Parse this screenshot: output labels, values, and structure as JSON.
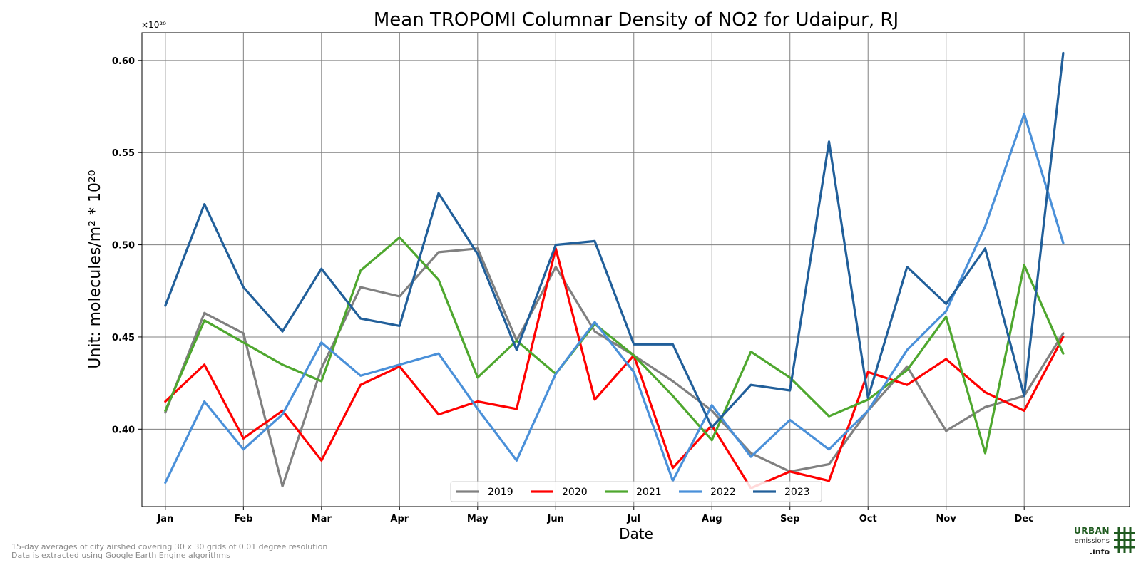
{
  "footnotes": {
    "line1": "15-day averages of city airshed covering 30 x 30 grids of 0.01 degree resolution",
    "line2": "Data is extracted using Google Earth Engine algorithms"
  },
  "logo": {
    "line1": "URBAN",
    "line2": "emissions",
    "line3": ".info"
  },
  "chart_data": {
    "type": "line",
    "title": "Mean TROPOMI Columnar Density of NO2 for Udaipur, RJ",
    "xlabel": "Date",
    "ylabel": "Unit: molecules/m² * 10²⁰",
    "offset_text": "×10²⁰",
    "x": [
      1,
      2,
      3,
      4,
      5,
      6,
      7,
      8,
      9,
      10,
      11,
      12,
      13,
      14,
      15,
      16,
      17,
      18,
      19,
      20,
      21,
      22,
      23,
      24
    ],
    "xlim": [
      0.4,
      25.7
    ],
    "xticks": [
      {
        "x": 1,
        "label": "Jan"
      },
      {
        "x": 3,
        "label": "Feb"
      },
      {
        "x": 5,
        "label": "Mar"
      },
      {
        "x": 7,
        "label": "Apr"
      },
      {
        "x": 9,
        "label": "May"
      },
      {
        "x": 11,
        "label": "Jun"
      },
      {
        "x": 13,
        "label": "Jul"
      },
      {
        "x": 15,
        "label": "Aug"
      },
      {
        "x": 17,
        "label": "Sep"
      },
      {
        "x": 19,
        "label": "Oct"
      },
      {
        "x": 21,
        "label": "Nov"
      },
      {
        "x": 23,
        "label": "Dec"
      }
    ],
    "ylim": [
      0.358,
      0.615
    ],
    "yticks": [
      {
        "v": 0.4,
        "label": "0.40"
      },
      {
        "v": 0.45,
        "label": "0.45"
      },
      {
        "v": 0.5,
        "label": "0.50"
      },
      {
        "v": 0.55,
        "label": "0.55"
      },
      {
        "v": 0.6,
        "label": "0.60"
      }
    ],
    "grid": true,
    "legend_position": "bottom-center",
    "series": [
      {
        "name": "2019",
        "color": "#808080",
        "values": [
          0.409,
          0.463,
          0.452,
          0.369,
          0.433,
          0.477,
          0.472,
          0.496,
          0.498,
          0.448,
          0.488,
          0.453,
          0.44,
          0.426,
          0.41,
          0.387,
          0.377,
          0.381,
          0.41,
          0.434,
          0.399,
          0.412,
          0.418,
          0.452
        ]
      },
      {
        "name": "2020",
        "color": "#ff0000",
        "values": [
          0.415,
          0.435,
          0.395,
          0.41,
          0.383,
          0.424,
          0.434,
          0.408,
          0.415,
          0.411,
          0.498,
          0.416,
          0.44,
          0.379,
          0.402,
          0.368,
          0.377,
          0.372,
          0.431,
          0.424,
          0.438,
          0.42,
          0.41,
          0.45
        ]
      },
      {
        "name": "2021",
        "color": "#4ea72e",
        "values": [
          0.41,
          0.459,
          0.447,
          0.435,
          0.426,
          0.486,
          0.504,
          0.481,
          0.428,
          0.448,
          0.43,
          0.457,
          0.44,
          0.418,
          0.394,
          0.442,
          0.428,
          0.407,
          0.416,
          0.432,
          0.461,
          0.387,
          0.489,
          0.441
        ]
      },
      {
        "name": "2022",
        "color": "#4a90d9",
        "values": [
          0.371,
          0.415,
          0.389,
          0.408,
          0.447,
          0.429,
          0.435,
          0.441,
          0.411,
          0.383,
          0.43,
          0.458,
          0.431,
          0.372,
          0.413,
          0.385,
          0.405,
          0.389,
          0.41,
          0.443,
          0.464,
          0.51,
          0.571,
          0.501
        ]
      },
      {
        "name": "2023",
        "color": "#215f9a",
        "values": [
          0.467,
          0.522,
          0.477,
          0.453,
          0.487,
          0.46,
          0.456,
          0.528,
          0.495,
          0.443,
          0.5,
          0.502,
          0.446,
          0.446,
          0.401,
          0.424,
          0.421,
          0.556,
          0.417,
          0.488,
          0.468,
          0.498,
          0.418,
          0.604
        ]
      }
    ]
  }
}
